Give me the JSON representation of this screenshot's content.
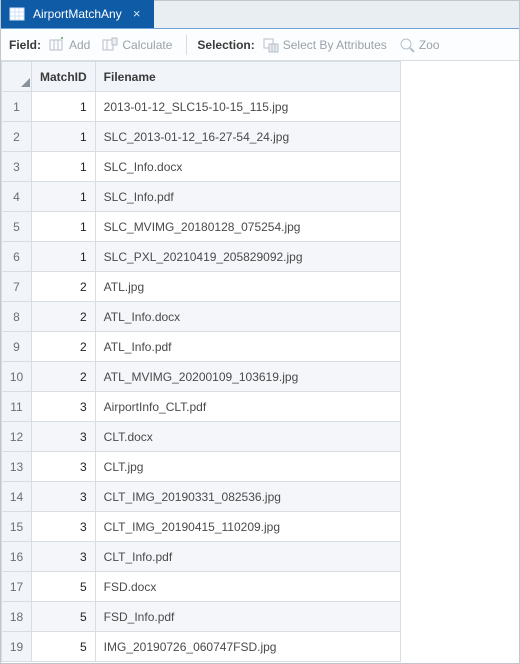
{
  "colors": {
    "tab_bg": "#0f5ba6",
    "tab_strip_bg": "#e9eef3",
    "toolbar_bg": "#fcfdfe",
    "border": "#d7dde3",
    "header_bg": "#f1f4f8",
    "row_even_bg": "#ffffff",
    "row_odd_bg": "#f4f6f9",
    "disabled_text": "#9aa2ab",
    "text": "#3a3a3a"
  },
  "tab": {
    "title": "AirportMatchAny"
  },
  "toolbar": {
    "field_label": "Field:",
    "add_label": "Add",
    "calculate_label": "Calculate",
    "selection_label": "Selection:",
    "select_by_attr_label": "Select By Attributes",
    "zoom_label": "Zoo"
  },
  "columns": {
    "matchid": "MatchID",
    "filename": "Filename"
  },
  "rows": [
    {
      "n": "1",
      "matchid": "1",
      "filename": "2013-01-12_SLC15-10-15_115.jpg"
    },
    {
      "n": "2",
      "matchid": "1",
      "filename": "SLC_2013-01-12_16-27-54_24.jpg"
    },
    {
      "n": "3",
      "matchid": "1",
      "filename": "SLC_Info.docx"
    },
    {
      "n": "4",
      "matchid": "1",
      "filename": "SLC_Info.pdf"
    },
    {
      "n": "5",
      "matchid": "1",
      "filename": "SLC_MVIMG_20180128_075254.jpg"
    },
    {
      "n": "6",
      "matchid": "1",
      "filename": "SLC_PXL_20210419_205829092.jpg"
    },
    {
      "n": "7",
      "matchid": "2",
      "filename": "ATL.jpg"
    },
    {
      "n": "8",
      "matchid": "2",
      "filename": "ATL_Info.docx"
    },
    {
      "n": "9",
      "matchid": "2",
      "filename": "ATL_Info.pdf"
    },
    {
      "n": "10",
      "matchid": "2",
      "filename": "ATL_MVIMG_20200109_103619.jpg"
    },
    {
      "n": "11",
      "matchid": "3",
      "filename": "AirportInfo_CLT.pdf"
    },
    {
      "n": "12",
      "matchid": "3",
      "filename": "CLT.docx"
    },
    {
      "n": "13",
      "matchid": "3",
      "filename": "CLT.jpg"
    },
    {
      "n": "14",
      "matchid": "3",
      "filename": "CLT_IMG_20190331_082536.jpg"
    },
    {
      "n": "15",
      "matchid": "3",
      "filename": "CLT_IMG_20190415_110209.jpg"
    },
    {
      "n": "16",
      "matchid": "3",
      "filename": "CLT_Info.pdf"
    },
    {
      "n": "17",
      "matchid": "5",
      "filename": "FSD.docx"
    },
    {
      "n": "18",
      "matchid": "5",
      "filename": "FSD_Info.pdf"
    },
    {
      "n": "19",
      "matchid": "5",
      "filename": "IMG_20190726_060747FSD.jpg"
    }
  ]
}
